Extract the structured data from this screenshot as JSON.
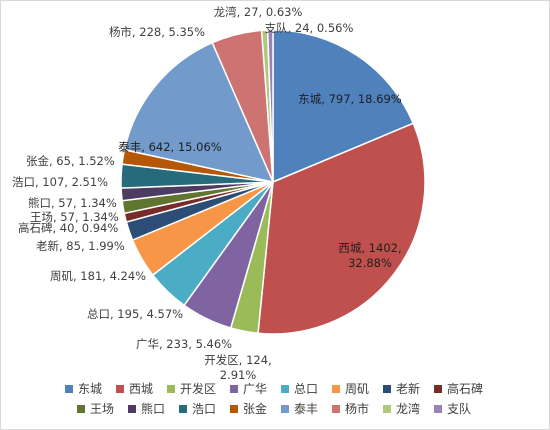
{
  "chart_data": {
    "type": "pie",
    "title": "",
    "categories": [
      "东城",
      "西城",
      "开发区",
      "广华",
      "总口",
      "周矶",
      "老新",
      "高石碑",
      "王场",
      "熊口",
      "浩口",
      "张金",
      "泰丰",
      "杨市",
      "龙湾",
      "支队"
    ],
    "values": [
      797,
      1402,
      124,
      233,
      195,
      181,
      85,
      40,
      57,
      57,
      107,
      65,
      642,
      228,
      27,
      24
    ],
    "percents": [
      "18.69%",
      "32.88%",
      "2.91%",
      "5.46%",
      "4.57%",
      "4.24%",
      "1.99%",
      "0.94%",
      "1.34%",
      "1.34%",
      "2.51%",
      "1.52%",
      "15.06%",
      "5.35%",
      "0.63%",
      "0.56%"
    ],
    "labels": [
      "东城, 797, 18.69%",
      "西城, 1402, 32.88%",
      "开发区, 124, 2.91%",
      "广华, 233, 5.46%",
      "总口, 195, 4.57%",
      "周矶, 181, 4.24%",
      "老新, 85, 1.99%",
      "高石碑, 40, 0.94%",
      "王场, 57, 1.34%",
      "熊口, 57, 1.34%",
      "浩口, 107, 2.51%",
      "张金, 65, 1.52%",
      "泰丰, 642, 15.06%",
      "杨市, 228, 5.35%",
      "龙湾, 27, 0.63%",
      "支队, 24, 0.56%"
    ],
    "colors": [
      "#4F81BD",
      "#C0504D",
      "#9BBB59",
      "#8064A2",
      "#4BACC6",
      "#F79646",
      "#2C4D75",
      "#772C2A",
      "#5F7530",
      "#4D3B62",
      "#276A7C",
      "#B65708",
      "#729ACA",
      "#CD7371",
      "#AFC97A",
      "#9983B5"
    ],
    "legend": "bottom"
  }
}
